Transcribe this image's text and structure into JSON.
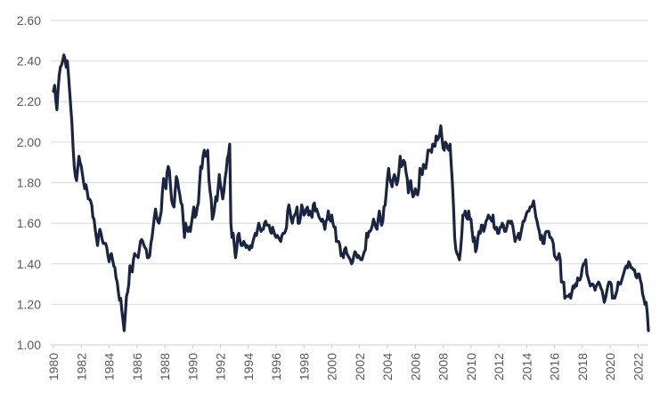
{
  "chart_data": {
    "type": "line",
    "title": "",
    "xlabel": "",
    "ylabel": "",
    "legend": "none",
    "grid": true,
    "ylim": [
      1.0,
      2.6
    ],
    "y_tick_step": 0.2,
    "y_tick_labels": [
      "1.00",
      "1.20",
      "1.40",
      "1.60",
      "1.80",
      "2.00",
      "2.20",
      "2.40",
      "2.60"
    ],
    "x_tick_labels": [
      "1980",
      "1982",
      "1984",
      "1986",
      "1988",
      "1990",
      "1992",
      "1994",
      "1996",
      "1998",
      "2000",
      "2002",
      "2004",
      "2006",
      "2008",
      "2010",
      "2012",
      "2014",
      "2016",
      "2018",
      "2020",
      "2022"
    ],
    "x_start_year": 1980,
    "points_per_year": 12,
    "colors": {
      "line": "#1a2542",
      "grid": "#d9d9d9",
      "axis": "#cccccc",
      "tick_label": "#595959",
      "background": "#ffffff"
    },
    "values_by_year": [
      [
        2.25,
        2.28,
        2.21,
        2.16,
        2.26,
        2.33,
        2.37,
        2.38,
        2.4,
        2.43,
        2.41,
        2.37
      ],
      [
        2.4,
        2.33,
        2.25,
        2.17,
        2.09,
        1.97,
        1.88,
        1.83,
        1.81,
        1.87,
        1.93,
        1.9
      ],
      [
        1.88,
        1.84,
        1.8,
        1.77,
        1.79,
        1.76,
        1.72,
        1.72,
        1.71,
        1.69,
        1.63,
        1.62
      ],
      [
        1.57,
        1.53,
        1.49,
        1.54,
        1.57,
        1.55,
        1.52,
        1.5,
        1.5,
        1.5,
        1.48,
        1.44
      ],
      [
        1.41,
        1.44,
        1.45,
        1.42,
        1.39,
        1.38,
        1.33,
        1.31,
        1.26,
        1.22,
        1.23,
        1.17
      ],
      [
        1.12,
        1.07,
        1.15,
        1.24,
        1.26,
        1.3,
        1.39,
        1.37,
        1.36,
        1.42,
        1.45,
        1.44
      ],
      [
        1.44,
        1.43,
        1.47,
        1.51,
        1.52,
        1.51,
        1.49,
        1.48,
        1.47,
        1.43,
        1.43,
        1.44
      ],
      [
        1.5,
        1.53,
        1.58,
        1.63,
        1.67,
        1.63,
        1.61,
        1.6,
        1.63,
        1.66,
        1.76,
        1.82
      ],
      [
        1.8,
        1.77,
        1.85,
        1.88,
        1.86,
        1.78,
        1.71,
        1.69,
        1.68,
        1.76,
        1.83,
        1.81
      ],
      [
        1.77,
        1.74,
        1.7,
        1.69,
        1.61,
        1.53,
        1.6,
        1.57,
        1.56,
        1.58,
        1.56,
        1.6
      ],
      [
        1.64,
        1.68,
        1.63,
        1.64,
        1.68,
        1.7,
        1.8,
        1.88,
        1.87,
        1.93,
        1.96,
        1.93
      ],
      [
        1.93,
        1.96,
        1.82,
        1.76,
        1.72,
        1.62,
        1.64,
        1.68,
        1.73,
        1.71,
        1.77,
        1.84
      ],
      [
        1.79,
        1.76,
        1.72,
        1.76,
        1.82,
        1.86,
        1.92,
        1.94,
        1.99,
        1.6,
        1.53,
        1.55
      ],
      [
        1.49,
        1.43,
        1.47,
        1.54,
        1.55,
        1.51,
        1.49,
        1.49,
        1.51,
        1.5,
        1.48,
        1.49
      ],
      [
        1.48,
        1.47,
        1.49,
        1.48,
        1.51,
        1.53,
        1.55,
        1.54,
        1.57,
        1.6,
        1.58,
        1.56
      ],
      [
        1.57,
        1.57,
        1.6,
        1.61,
        1.59,
        1.59,
        1.59,
        1.56,
        1.55,
        1.58,
        1.56,
        1.54
      ],
      [
        1.53,
        1.54,
        1.53,
        1.52,
        1.51,
        1.54,
        1.55,
        1.55,
        1.56,
        1.58,
        1.66,
        1.69
      ],
      [
        1.66,
        1.62,
        1.6,
        1.63,
        1.64,
        1.65,
        1.68,
        1.6,
        1.6,
        1.63,
        1.69,
        1.67
      ],
      [
        1.64,
        1.65,
        1.67,
        1.68,
        1.64,
        1.66,
        1.64,
        1.63,
        1.69,
        1.7,
        1.66,
        1.67
      ],
      [
        1.65,
        1.63,
        1.62,
        1.61,
        1.62,
        1.6,
        1.57,
        1.61,
        1.62,
        1.66,
        1.62,
        1.61
      ],
      [
        1.64,
        1.6,
        1.58,
        1.58,
        1.51,
        1.51,
        1.51,
        1.49,
        1.44,
        1.45,
        1.43,
        1.47
      ],
      [
        1.48,
        1.45,
        1.44,
        1.43,
        1.42,
        1.4,
        1.41,
        1.44,
        1.46,
        1.45,
        1.43,
        1.44
      ],
      [
        1.43,
        1.42,
        1.42,
        1.44,
        1.46,
        1.47,
        1.55,
        1.53,
        1.56,
        1.56,
        1.57,
        1.59
      ],
      [
        1.62,
        1.6,
        1.58,
        1.57,
        1.62,
        1.66,
        1.62,
        1.59,
        1.61,
        1.68,
        1.69,
        1.75
      ],
      [
        1.82,
        1.87,
        1.82,
        1.8,
        1.78,
        1.82,
        1.84,
        1.82,
        1.79,
        1.81,
        1.86,
        1.93
      ],
      [
        1.88,
        1.89,
        1.91,
        1.9,
        1.85,
        1.82,
        1.75,
        1.79,
        1.81,
        1.76,
        1.73,
        1.74
      ],
      [
        1.77,
        1.75,
        1.74,
        1.77,
        1.87,
        1.85,
        1.84,
        1.89,
        1.88,
        1.87,
        1.91,
        1.96
      ],
      [
        1.96,
        1.96,
        1.95,
        1.99,
        1.98,
        1.98,
        2.03,
        2.01,
        2.02,
        2.04,
        2.08,
        2.02
      ],
      [
        1.97,
        1.96,
        2.0,
        1.99,
        1.97,
        1.96,
        1.99,
        1.89,
        1.8,
        1.68,
        1.53,
        1.47
      ],
      [
        1.45,
        1.44,
        1.42,
        1.47,
        1.54,
        1.64,
        1.64,
        1.66,
        1.63,
        1.62,
        1.66,
        1.62
      ],
      [
        1.62,
        1.56,
        1.51,
        1.53,
        1.46,
        1.48,
        1.53,
        1.56,
        1.55,
        1.59,
        1.59,
        1.56
      ],
      [
        1.58,
        1.61,
        1.62,
        1.64,
        1.63,
        1.62,
        1.61,
        1.64,
        1.58,
        1.57,
        1.58,
        1.55
      ],
      [
        1.55,
        1.58,
        1.58,
        1.6,
        1.59,
        1.56,
        1.56,
        1.58,
        1.61,
        1.61,
        1.6,
        1.61
      ],
      [
        1.59,
        1.55,
        1.51,
        1.53,
        1.53,
        1.55,
        1.52,
        1.55,
        1.58,
        1.61,
        1.61,
        1.63
      ],
      [
        1.65,
        1.66,
        1.66,
        1.68,
        1.68,
        1.69,
        1.71,
        1.67,
        1.63,
        1.61,
        1.58,
        1.56
      ],
      [
        1.52,
        1.54,
        1.5,
        1.5,
        1.55,
        1.56,
        1.56,
        1.56,
        1.53,
        1.53,
        1.52,
        1.5
      ],
      [
        1.44,
        1.43,
        1.42,
        1.43,
        1.45,
        1.42,
        1.31,
        1.31,
        1.31,
        1.23,
        1.24,
        1.24
      ],
      [
        1.24,
        1.25,
        1.23,
        1.26,
        1.29,
        1.28,
        1.3,
        1.29,
        1.33,
        1.32,
        1.32,
        1.34
      ],
      [
        1.38,
        1.4,
        1.4,
        1.42,
        1.35,
        1.33,
        1.31,
        1.29,
        1.3,
        1.3,
        1.29,
        1.27
      ],
      [
        1.29,
        1.3,
        1.31,
        1.3,
        1.28,
        1.27,
        1.24,
        1.21,
        1.23,
        1.26,
        1.29,
        1.31
      ],
      [
        1.31,
        1.3,
        1.23,
        1.24,
        1.23,
        1.25,
        1.27,
        1.31,
        1.3,
        1.3,
        1.32,
        1.34
      ],
      [
        1.36,
        1.38,
        1.39,
        1.38,
        1.41,
        1.4,
        1.38,
        1.38,
        1.37,
        1.37,
        1.34,
        1.33
      ],
      [
        1.35,
        1.35,
        1.32,
        1.3,
        1.25,
        1.23,
        1.2,
        1.21,
        1.16,
        1.07
      ]
    ]
  }
}
